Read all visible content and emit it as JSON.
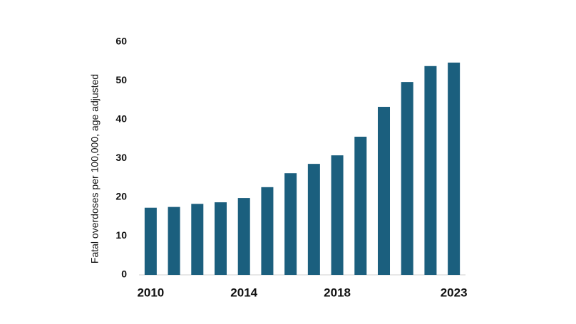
{
  "chart_data": {
    "type": "bar",
    "ylabel": "Fatal overdoses per 100,000, age adjusted",
    "categories": [
      "2010",
      null,
      null,
      null,
      "2014",
      null,
      null,
      null,
      "2018",
      null,
      null,
      null,
      null,
      "2023"
    ],
    "values": [
      17.3,
      17.5,
      18.3,
      18.7,
      19.8,
      22.6,
      26.2,
      28.6,
      30.8,
      35.6,
      43.3,
      49.7,
      53.8,
      54.7
    ],
    "color": "#1b5f7e",
    "ylim": [
      0,
      60
    ],
    "yticks": [
      0,
      10,
      20,
      30,
      40,
      50,
      60
    ],
    "grid": false
  }
}
